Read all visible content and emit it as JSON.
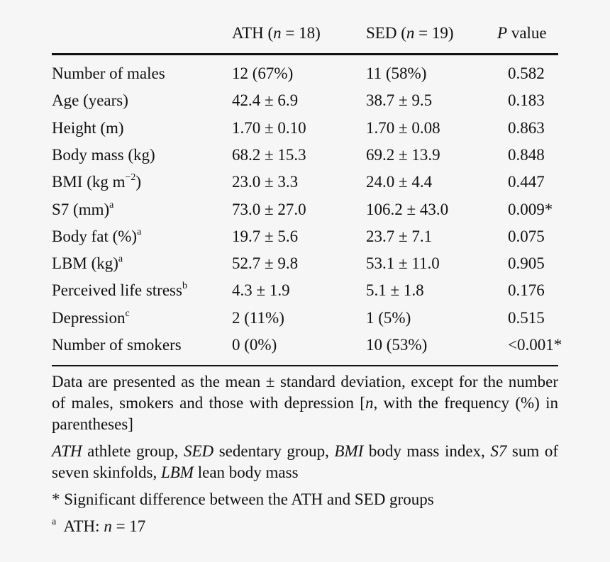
{
  "header": {
    "ath_prefix": "ATH (",
    "ath_n": "n",
    "ath_suffix": " = 18)",
    "sed_prefix": "SED (",
    "sed_n": "n",
    "sed_suffix": " = 19)",
    "p_letter": "P",
    "p_suffix": " value"
  },
  "rows": [
    {
      "label": "Number of males",
      "sup": "",
      "ath": "12 (67%)",
      "sed": "11 (58%)",
      "p": "0.582"
    },
    {
      "label": "Age (years)",
      "sup": "",
      "ath": "42.4 ± 6.9",
      "sed": "38.7 ± 9.5",
      "p": "0.183"
    },
    {
      "label": "Height (m)",
      "sup": "",
      "ath": "1.70 ± 0.10",
      "sed": "1.70 ± 0.08",
      "p": "0.863"
    },
    {
      "label": "Body mass (kg)",
      "sup": "",
      "ath": "68.2 ± 15.3",
      "sed": "69.2 ± 13.9",
      "p": "0.848"
    },
    {
      "label": "BMI (kg m",
      "label_sup": "−2",
      "label_after": ")",
      "sup": "",
      "ath": "23.0 ± 3.3",
      "sed": "24.0 ± 4.4",
      "p": "0.447"
    },
    {
      "label": "S7 (mm)",
      "sup": "a",
      "ath": "73.0 ± 27.0",
      "sed": "106.2 ± 43.0",
      "p": "0.009*"
    },
    {
      "label": "Body fat (%)",
      "sup": "a",
      "ath": "19.7 ± 5.6",
      "sed": "23.7 ± 7.1",
      "p": "0.075"
    },
    {
      "label": "LBM (kg)",
      "sup": "a",
      "ath": "52.7 ± 9.8",
      "sed": "53.1 ± 11.0",
      "p": "0.905"
    },
    {
      "label": "Perceived life stress",
      "sup": "b",
      "ath": "4.3 ± 1.9",
      "sed": "5.1 ± 1.8",
      "p": "0.176"
    },
    {
      "label": "Depression",
      "sup": "c",
      "ath": "2 (11%)",
      "sed": "1 (5%)",
      "p": "0.515"
    },
    {
      "label": "Number of smokers",
      "sup": "",
      "ath": "0 (0%)",
      "sed": "10 (53%)",
      "p": "<0.001*"
    }
  ],
  "notes": {
    "n1_a": "Data are presented as the mean ± standard deviation, except for the number of males, smokers and those with depression [",
    "n1_n": "n",
    "n1_b": ", with the frequency (%) in parentheses]",
    "n2_ath": "ATH",
    "n2_ath_def": " athlete group, ",
    "n2_sed": "SED",
    "n2_sed_def": " sedentary group, ",
    "n2_bmi": "BMI",
    "n2_bmi_def": " body mass index, ",
    "n2_s7": "S7",
    "n2_s7_def": " sum of seven skinfolds, ",
    "n2_lbm": "LBM",
    "n2_lbm_def": " lean body mass",
    "n3": "* Significant difference between the ATH and SED groups",
    "n4_sup": "a",
    "n4_a": "  ATH: ",
    "n4_n": "n",
    "n4_b": " = 17"
  }
}
